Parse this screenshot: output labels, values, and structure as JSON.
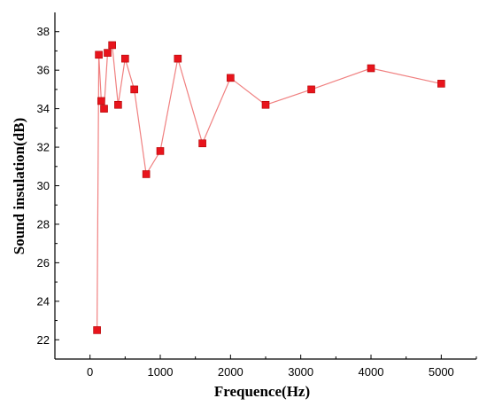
{
  "chart_data": {
    "type": "line",
    "title": "",
    "xlabel": "Frequence(Hz)",
    "ylabel": "Sound insulation(dB)",
    "xlim": [
      -500,
      5500
    ],
    "ylim": [
      21,
      39
    ],
    "xticks": [
      0,
      1000,
      2000,
      3000,
      4000,
      5000
    ],
    "yticks": [
      22,
      24,
      26,
      28,
      30,
      32,
      34,
      36,
      38
    ],
    "grid": false,
    "legend": "none",
    "marker": "square",
    "colors": {
      "line": "#f08080",
      "marker": "#e8141c"
    },
    "series": [
      {
        "x": [
          100,
          125,
          160,
          200,
          250,
          315,
          400,
          500,
          630,
          800,
          1000,
          1250,
          1600,
          2000,
          2500,
          3150,
          4000,
          5000
        ],
        "y": [
          22.5,
          36.8,
          34.4,
          34.0,
          36.9,
          37.3,
          34.2,
          36.6,
          35.0,
          30.6,
          31.8,
          36.6,
          32.2,
          35.6,
          34.2,
          35.0,
          36.1,
          35.3
        ]
      }
    ]
  }
}
